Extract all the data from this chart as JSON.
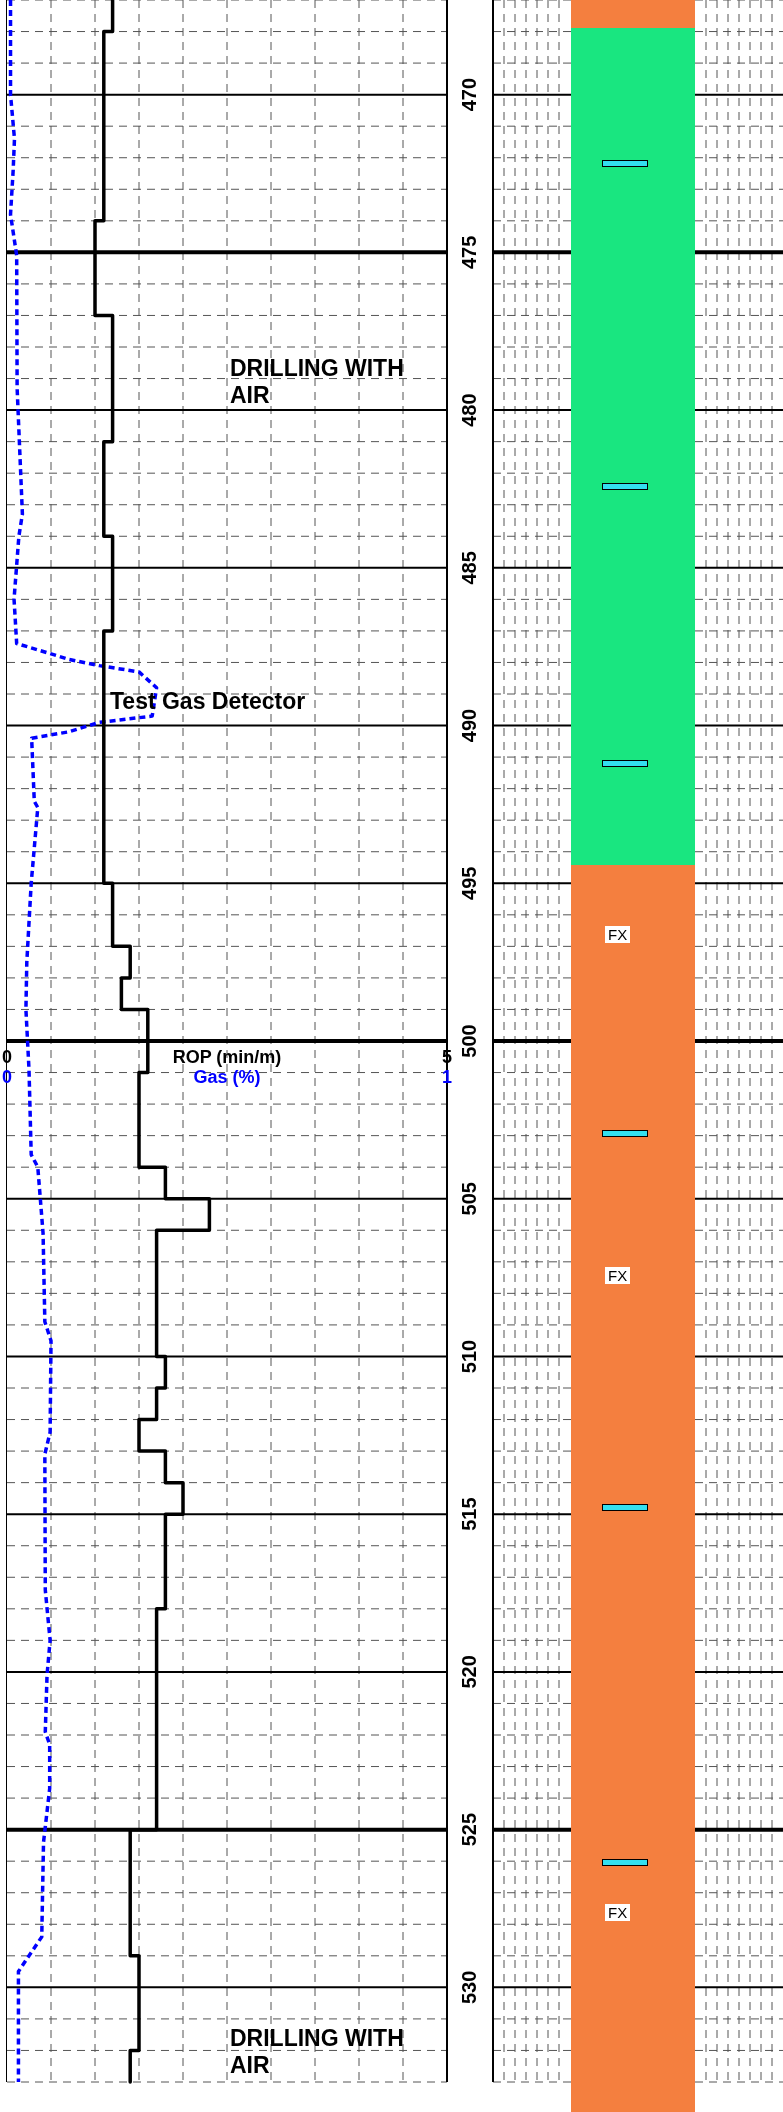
{
  "chart_data": {
    "type": "line",
    "orientation": "horizontal",
    "xlabel": "ROP (min/m)",
    "x2label": "Gas (%)",
    "xlim": [
      0,
      5
    ],
    "xticks": [
      0,
      5
    ],
    "x2lim": [
      0,
      1
    ],
    "x2ticks": [
      0,
      1
    ],
    "ylim": [
      533,
      467
    ],
    "yticks": [
      470,
      475,
      480,
      485,
      490,
      495,
      500,
      505,
      510,
      515,
      520,
      525,
      530
    ],
    "grid": true,
    "marker": "none",
    "series": [
      {
        "type": "step",
        "color": "#000000",
        "line_style": "solid",
        "x": [
          467,
          468,
          474,
          477,
          481,
          484,
          487,
          495,
          497,
          498,
          499,
          501,
          504,
          505,
          506,
          510,
          511,
          512,
          513,
          514,
          515,
          518,
          525,
          529,
          532,
          533
        ],
        "values": [
          1.2,
          1.1,
          1.0,
          1.2,
          1.1,
          1.2,
          1.1,
          1.2,
          1.4,
          1.3,
          1.6,
          1.5,
          1.8,
          2.3,
          1.7,
          1.8,
          1.7,
          1.5,
          1.8,
          2.0,
          1.8,
          1.7,
          1.4,
          1.5,
          1.4,
          1.4
        ]
      },
      {
        "type": "line",
        "color": "#0000ff",
        "line_style": "dotted",
        "axis": "x2",
        "x": [
          467,
          470,
          471.4,
          472.4,
          473.8,
          475.1,
          479.3,
          483.3,
          484.0,
          486.0,
          487.4,
          487.6,
          487.9,
          488.1,
          488.3,
          488.8,
          489.7,
          489.9,
          490.2,
          490.4,
          492.4,
          492.6,
          495.0,
          497.5,
          499.0,
          500.9,
          503.6,
          504.0,
          506.1,
          508.9,
          509.5,
          512.4,
          513.1,
          517.4,
          519.0,
          520.1,
          521.9,
          522.3,
          523.7,
          525.4,
          528.4,
          529.1,
          529.5,
          533.0
        ],
        "values": [
          0.008,
          0.008,
          0.017,
          0.014,
          0.008,
          0.022,
          0.023,
          0.035,
          0.027,
          0.016,
          0.022,
          0.07,
          0.14,
          0.21,
          0.3,
          0.34,
          0.33,
          0.21,
          0.14,
          0.056,
          0.062,
          0.07,
          0.055,
          0.045,
          0.043,
          0.05,
          0.055,
          0.07,
          0.082,
          0.086,
          0.1,
          0.098,
          0.086,
          0.087,
          0.098,
          0.091,
          0.087,
          0.097,
          0.097,
          0.083,
          0.079,
          0.045,
          0.026,
          0.026
        ]
      }
    ],
    "annotations": [
      "DRILLING WITH AIR",
      "Test Gas Detector",
      "DRILLING WITH AIR",
      "FX",
      "FX",
      "FX"
    ]
  }
}
